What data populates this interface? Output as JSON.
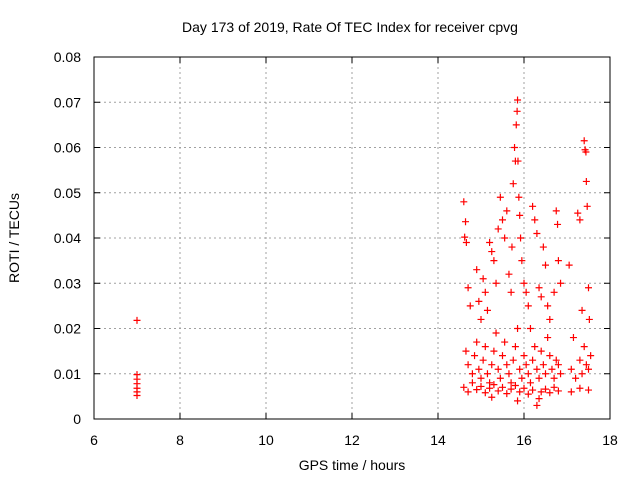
{
  "chart_data": {
    "type": "scatter",
    "title": "Day 173 of 2019, Rate Of TEC Index for receiver cpvg",
    "xlabel": "GPS time / hours",
    "ylabel": "ROTI / TECUs",
    "xlim": [
      6,
      18
    ],
    "ylim": [
      0,
      0.08
    ],
    "xticks": [
      6,
      8,
      10,
      12,
      14,
      16,
      18
    ],
    "xtick_labels": [
      "6",
      "8",
      "10",
      "12",
      "14",
      "16",
      "18"
    ],
    "yticks": [
      0,
      0.01,
      0.02,
      0.03,
      0.04,
      0.05,
      0.06,
      0.07,
      0.08
    ],
    "ytick_labels": [
      "0",
      "0.01",
      "0.02",
      "0.03",
      "0.04",
      "0.05",
      "0.06",
      "0.07",
      "0.08"
    ],
    "grid": true,
    "marker": "plus",
    "series": [
      {
        "name": "ROTI",
        "color": "#ff0000",
        "points": [
          [
            7.0,
            0.0218
          ],
          [
            7.0,
            0.0098
          ],
          [
            7.0,
            0.0088
          ],
          [
            7.0,
            0.0078
          ],
          [
            7.0,
            0.0068
          ],
          [
            7.0,
            0.006
          ],
          [
            7.0,
            0.0052
          ],
          [
            14.6,
            0.048
          ],
          [
            14.62,
            0.0402
          ],
          [
            14.64,
            0.0436
          ],
          [
            14.66,
            0.039
          ],
          [
            14.7,
            0.029
          ],
          [
            14.75,
            0.025
          ],
          [
            14.9,
            0.033
          ],
          [
            14.95,
            0.026
          ],
          [
            15.0,
            0.022
          ],
          [
            15.05,
            0.031
          ],
          [
            15.1,
            0.028
          ],
          [
            15.15,
            0.024
          ],
          [
            15.2,
            0.039
          ],
          [
            15.25,
            0.037
          ],
          [
            15.3,
            0.035
          ],
          [
            15.35,
            0.03
          ],
          [
            15.4,
            0.042
          ],
          [
            15.45,
            0.049
          ],
          [
            15.5,
            0.044
          ],
          [
            15.55,
            0.04
          ],
          [
            15.6,
            0.046
          ],
          [
            15.65,
            0.032
          ],
          [
            15.7,
            0.028
          ],
          [
            15.72,
            0.038
          ],
          [
            15.75,
            0.052
          ],
          [
            15.78,
            0.06
          ],
          [
            15.8,
            0.057
          ],
          [
            15.82,
            0.065
          ],
          [
            15.84,
            0.068
          ],
          [
            15.85,
            0.0705
          ],
          [
            15.86,
            0.057
          ],
          [
            15.88,
            0.049
          ],
          [
            15.9,
            0.045
          ],
          [
            15.92,
            0.04
          ],
          [
            15.95,
            0.035
          ],
          [
            16.0,
            0.03
          ],
          [
            16.05,
            0.028
          ],
          [
            16.1,
            0.025
          ],
          [
            16.15,
            0.02
          ],
          [
            16.2,
            0.047
          ],
          [
            16.25,
            0.044
          ],
          [
            16.3,
            0.041
          ],
          [
            16.35,
            0.029
          ],
          [
            16.4,
            0.027
          ],
          [
            16.45,
            0.038
          ],
          [
            16.5,
            0.034
          ],
          [
            16.55,
            0.025
          ],
          [
            16.6,
            0.022
          ],
          [
            16.7,
            0.028
          ],
          [
            16.75,
            0.046
          ],
          [
            16.78,
            0.043
          ],
          [
            16.8,
            0.035
          ],
          [
            16.85,
            0.03
          ],
          [
            17.05,
            0.034
          ],
          [
            17.15,
            0.018
          ],
          [
            17.25,
            0.0455
          ],
          [
            17.3,
            0.044
          ],
          [
            17.35,
            0.024
          ],
          [
            17.4,
            0.0615
          ],
          [
            17.42,
            0.0595
          ],
          [
            17.44,
            0.059
          ],
          [
            17.45,
            0.0525
          ],
          [
            17.47,
            0.047
          ],
          [
            17.5,
            0.029
          ],
          [
            17.52,
            0.022
          ],
          [
            14.65,
            0.015
          ],
          [
            14.7,
            0.012
          ],
          [
            14.8,
            0.01
          ],
          [
            14.85,
            0.014
          ],
          [
            14.9,
            0.017
          ],
          [
            14.95,
            0.011
          ],
          [
            15.0,
            0.009
          ],
          [
            15.05,
            0.013
          ],
          [
            15.1,
            0.016
          ],
          [
            15.15,
            0.01
          ],
          [
            15.2,
            0.008
          ],
          [
            15.25,
            0.012
          ],
          [
            15.3,
            0.015
          ],
          [
            15.35,
            0.019
          ],
          [
            15.4,
            0.011
          ],
          [
            15.45,
            0.009
          ],
          [
            15.5,
            0.014
          ],
          [
            15.55,
            0.017
          ],
          [
            15.6,
            0.012
          ],
          [
            15.65,
            0.01
          ],
          [
            15.7,
            0.008
          ],
          [
            15.75,
            0.013
          ],
          [
            15.8,
            0.016
          ],
          [
            15.85,
            0.02
          ],
          [
            15.9,
            0.011
          ],
          [
            15.95,
            0.009
          ],
          [
            16.0,
            0.014
          ],
          [
            16.05,
            0.012
          ],
          [
            16.1,
            0.01
          ],
          [
            16.15,
            0.008
          ],
          [
            16.2,
            0.013
          ],
          [
            16.25,
            0.016
          ],
          [
            16.3,
            0.011
          ],
          [
            16.35,
            0.009
          ],
          [
            16.4,
            0.015
          ],
          [
            16.45,
            0.012
          ],
          [
            16.5,
            0.01
          ],
          [
            16.55,
            0.018
          ],
          [
            16.6,
            0.014
          ],
          [
            16.65,
            0.011
          ],
          [
            16.7,
            0.009
          ],
          [
            16.75,
            0.013
          ],
          [
            16.8,
            0.012
          ],
          [
            16.85,
            0.01
          ],
          [
            17.1,
            0.011
          ],
          [
            17.2,
            0.009
          ],
          [
            17.3,
            0.013
          ],
          [
            17.35,
            0.01
          ],
          [
            17.4,
            0.016
          ],
          [
            17.45,
            0.012
          ],
          [
            17.5,
            0.011
          ],
          [
            17.55,
            0.014
          ],
          [
            14.6,
            0.007
          ],
          [
            14.7,
            0.006
          ],
          [
            14.8,
            0.008
          ],
          [
            14.9,
            0.0065
          ],
          [
            15.0,
            0.0072
          ],
          [
            15.1,
            0.0058
          ],
          [
            15.2,
            0.0068
          ],
          [
            15.3,
            0.0076
          ],
          [
            15.4,
            0.0062
          ],
          [
            15.5,
            0.007
          ],
          [
            15.6,
            0.0056
          ],
          [
            15.7,
            0.0066
          ],
          [
            15.8,
            0.0074
          ],
          [
            15.9,
            0.006
          ],
          [
            16.0,
            0.0068
          ],
          [
            16.1,
            0.0055
          ],
          [
            16.2,
            0.0064
          ],
          [
            16.3,
            0.003
          ],
          [
            16.4,
            0.006
          ],
          [
            16.5,
            0.0066
          ],
          [
            16.6,
            0.0058
          ],
          [
            16.7,
            0.007
          ],
          [
            16.8,
            0.0062
          ],
          [
            17.1,
            0.006
          ],
          [
            17.3,
            0.0068
          ],
          [
            17.5,
            0.0064
          ],
          [
            16.35,
            0.0045
          ],
          [
            15.25,
            0.0048
          ],
          [
            15.85,
            0.004
          ]
        ]
      }
    ]
  }
}
